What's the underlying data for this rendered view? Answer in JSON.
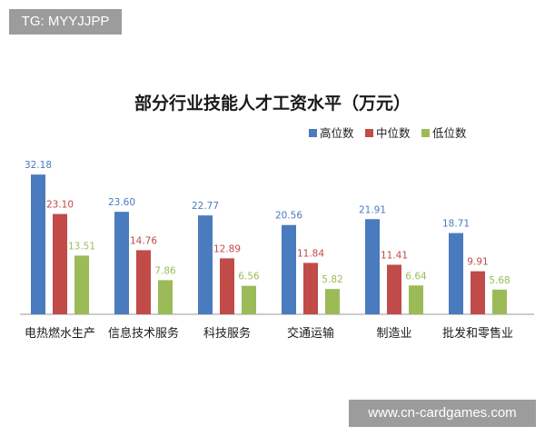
{
  "watermark_top": "TG: MYYJJPP",
  "watermark_bottom": "www.cn-cardgames.com",
  "chart_data": {
    "type": "bar",
    "title": "部分行业技能人才工资水平（万元）",
    "categories": [
      "电热燃水生产",
      "信息技术服务",
      "科技服务",
      "交通运输",
      "制造业",
      "批发和零售业"
    ],
    "series": [
      {
        "name": "高位数",
        "color": "#4a7bbf",
        "values": [
          32.18,
          23.6,
          22.77,
          20.56,
          21.91,
          18.71
        ],
        "labels": [
          "32.18",
          "23.60",
          "22.77",
          "20.56",
          "21.91",
          "18.71"
        ]
      },
      {
        "name": "中位数",
        "color": "#c04b48",
        "values": [
          23.1,
          14.76,
          12.89,
          11.84,
          11.41,
          9.91
        ],
        "labels": [
          "23.10",
          "14.76",
          "12.89",
          "11.84",
          "11.41",
          "9.91"
        ]
      },
      {
        "name": "低位数",
        "color": "#9bbb59",
        "values": [
          13.51,
          7.86,
          6.56,
          5.82,
          6.64,
          5.68
        ],
        "labels": [
          "13.51",
          "7.86",
          "6.56",
          "5.82",
          "6.64",
          "5.68"
        ]
      }
    ],
    "ylim": [
      0,
      35
    ],
    "legend_position": "top-right",
    "grid": false
  }
}
